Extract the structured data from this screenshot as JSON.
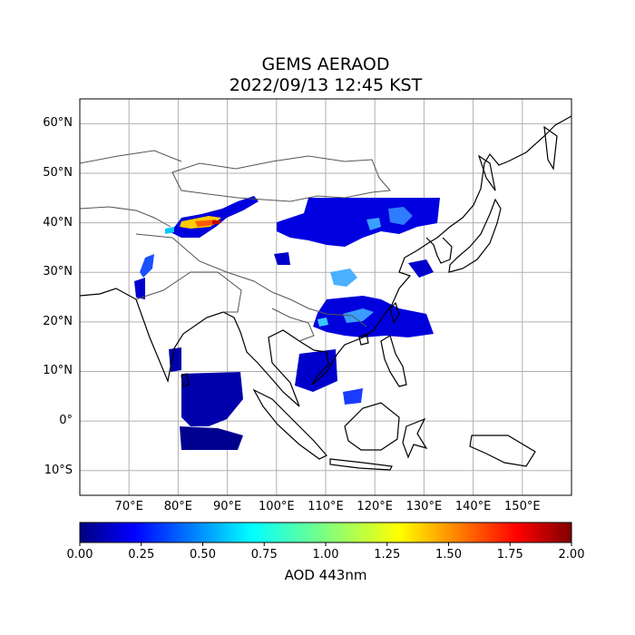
{
  "title_line1": "GEMS AERAOD",
  "title_line2": "2022/09/13 12:45 KST",
  "lat_labels": [
    "60°N",
    "50°N",
    "40°N",
    "30°N",
    "20°N",
    "10°N",
    "0°",
    "10°S"
  ],
  "lon_labels": [
    "70°E",
    "80°E",
    "90°E",
    "100°E",
    "110°E",
    "120°E",
    "130°E",
    "140°E",
    "150°E"
  ],
  "map_extent": {
    "lon_min": 60,
    "lon_max": 160,
    "lat_min": -15,
    "lat_max": 65
  },
  "lat_ticks": [
    60,
    50,
    40,
    30,
    20,
    10,
    0,
    -10
  ],
  "lon_ticks": [
    70,
    80,
    90,
    100,
    110,
    120,
    130,
    140,
    150
  ],
  "colorbar": {
    "label": "AOD 443nm",
    "ticks": [
      "0.00",
      "0.25",
      "0.50",
      "0.75",
      "1.00",
      "1.25",
      "1.50",
      "1.75",
      "2.00"
    ],
    "tick_values": [
      0,
      0.25,
      0.5,
      0.75,
      1.0,
      1.25,
      1.5,
      1.75,
      2.0
    ],
    "range": [
      0,
      2
    ],
    "colormap": "jet",
    "colors": [
      "#00007f",
      "#0000ff",
      "#007fff",
      "#00ffff",
      "#7fff7f",
      "#ffff00",
      "#ff7f00",
      "#ff0000",
      "#7f0000"
    ]
  },
  "gridlines": true,
  "colors": {
    "grid": "#b0b0b0",
    "coast": "#000000",
    "border": "#555555"
  }
}
